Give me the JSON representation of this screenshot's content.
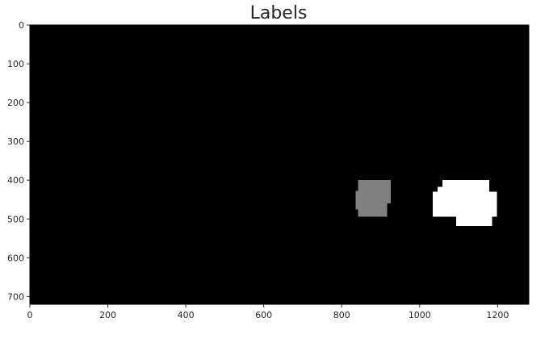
{
  "chart_data": {
    "type": "heatmap",
    "title": "Labels",
    "xlabel": "",
    "ylabel": "",
    "xlim": [
      0,
      1280
    ],
    "ylim": [
      720,
      0
    ],
    "xticks": [
      0,
      200,
      400,
      600,
      800,
      1000,
      1200
    ],
    "yticks": [
      0,
      100,
      200,
      300,
      400,
      500,
      600,
      700
    ],
    "grid": false,
    "colormap": "gray",
    "background_label": 0,
    "background_color": "#000000",
    "regions": [
      {
        "label": 1,
        "color": "#808080",
        "rects": [
          {
            "x0": 842,
            "x1": 926,
            "y0": 400,
            "y1": 428
          },
          {
            "x0": 836,
            "x1": 926,
            "y0": 428,
            "y1": 460
          },
          {
            "x0": 836,
            "x1": 916,
            "y0": 460,
            "y1": 476
          },
          {
            "x0": 842,
            "x1": 916,
            "y0": 476,
            "y1": 494
          }
        ]
      },
      {
        "label": 2,
        "color": "#ffffff",
        "rects": [
          {
            "x0": 1058,
            "x1": 1178,
            "y0": 400,
            "y1": 417
          },
          {
            "x0": 1046,
            "x1": 1178,
            "y0": 417,
            "y1": 430
          },
          {
            "x0": 1034,
            "x1": 1198,
            "y0": 430,
            "y1": 494
          },
          {
            "x0": 1094,
            "x1": 1186,
            "y0": 494,
            "y1": 518
          }
        ]
      }
    ]
  }
}
